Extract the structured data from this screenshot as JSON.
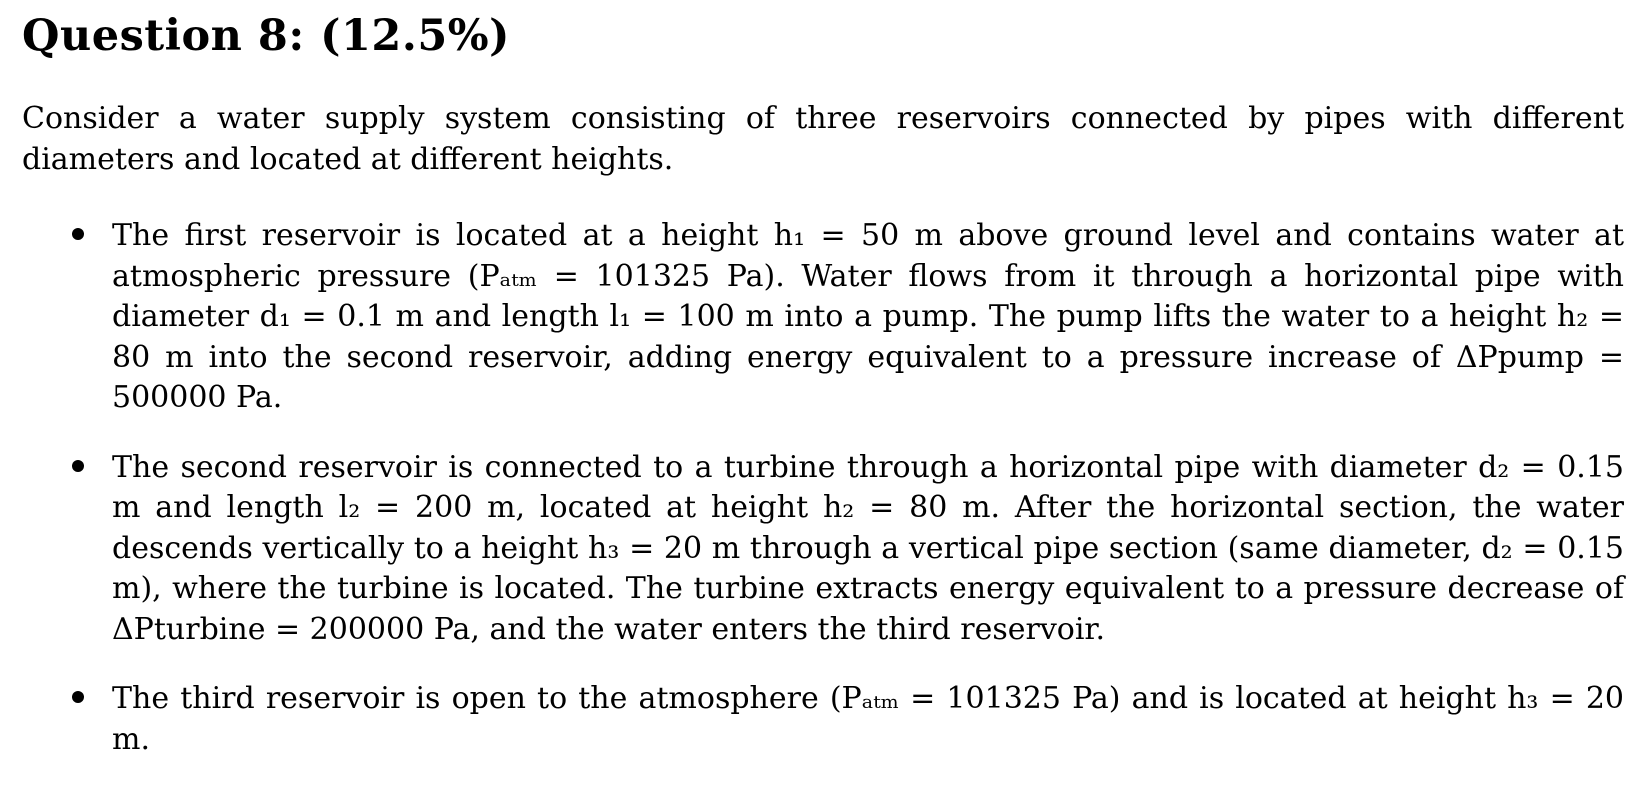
{
  "question": {
    "heading": "Question 8: (12.5%)"
  },
  "intro": "Consider a water supply system consisting of three reservoirs connected by pipes with different diameters and located at different heights.",
  "bullets": [
    {
      "text": "The first reservoir is located at a height h₁ = 50 m above ground level and contains water at atmospheric pressure (Pₐₜₘ = 101325 Pa). Water flows from it through a horizontal pipe with diameter d₁ = 0.1 m and length l₁ = 100 m into a pump. The pump lifts the water to a height h₂ = 80 m into the second reservoir, adding energy equivalent to a pressure increase of ΔPpump = 500000 Pa."
    },
    {
      "text": "The second reservoir is connected to a turbine through a horizontal pipe with diameter d₂ = 0.15 m and length l₂ = 200 m, located at height h₂ = 80 m. After the horizontal section, the water descends vertically to a height h₃ = 20 m through a vertical pipe section (same diameter, d₂ = 0.15 m), where the turbine is located. The turbine extracts energy equivalent to a pressure decrease of ΔPturbine = 200000 Pa, and the water enters the third reservoir."
    },
    {
      "text": "The third reservoir is open to the atmosphere (Pₐₜₘ = 101325 Pa) and is located at height h₃ = 20 m."
    }
  ]
}
